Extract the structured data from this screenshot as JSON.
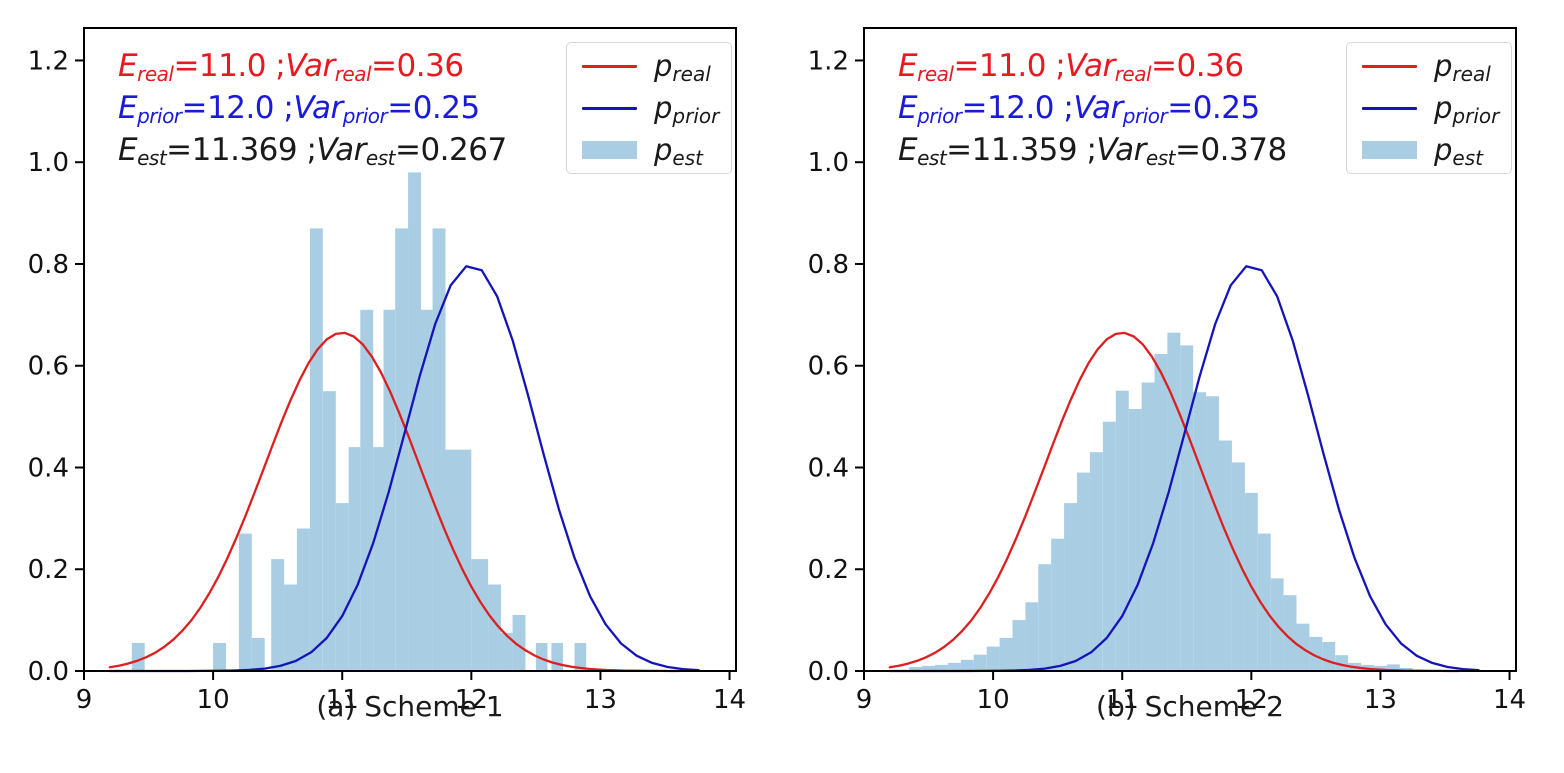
{
  "figure": {
    "background": "#ffffff",
    "spine_color": "#000000",
    "tick_label_color": "#111111"
  },
  "chart_data": [
    {
      "panel": "a",
      "type": "histogram",
      "caption": "(a) Scheme 1",
      "axes": {
        "xlim": [
          9,
          14.05
        ],
        "ylim": [
          0,
          1.2638
        ],
        "x_ticks": [
          {
            "v": 9,
            "label": "9"
          },
          {
            "v": 10,
            "label": "10"
          },
          {
            "v": 11,
            "label": "11"
          },
          {
            "v": 12,
            "label": "12"
          },
          {
            "v": 13,
            "label": "13"
          },
          {
            "v": 14,
            "label": "14"
          }
        ],
        "y_ticks": [
          {
            "v": 0.0,
            "label": "0.0"
          },
          {
            "v": 0.2,
            "label": "0.2"
          },
          {
            "v": 0.4,
            "label": "0.4"
          },
          {
            "v": 0.6,
            "label": "0.6"
          },
          {
            "v": 0.8,
            "label": "0.8"
          },
          {
            "v": 1.0,
            "label": "1.0"
          },
          {
            "v": 1.2,
            "label": "1.2"
          }
        ],
        "grid": false
      },
      "curves": [
        {
          "name": "p_{real}",
          "mean": 11.0,
          "variance": 0.36,
          "peak": 0.665,
          "color": "#dc1f1f",
          "x_start": 9.2,
          "x_end": 13.62
        },
        {
          "name": "p_{prior}",
          "mean": 12.0,
          "variance": 0.25,
          "peak": 0.798,
          "color": "#1414b8",
          "x_start": 9.2,
          "x_end": 13.8
        }
      ],
      "histogram": {
        "name": "p_{est}",
        "color": "#a9cde3",
        "mean": 11.369,
        "variance": 0.267,
        "bars": [
          [
            9.37,
            9.47,
            0.055
          ],
          [
            10.0,
            10.1,
            0.055
          ],
          [
            10.2,
            10.3,
            0.27
          ],
          [
            10.3,
            10.4,
            0.065
          ],
          [
            10.45,
            10.55,
            0.22
          ],
          [
            10.55,
            10.65,
            0.17
          ],
          [
            10.65,
            10.75,
            0.28
          ],
          [
            10.75,
            10.85,
            0.87
          ],
          [
            10.85,
            10.95,
            0.55
          ],
          [
            10.95,
            11.05,
            0.33
          ],
          [
            11.05,
            11.14,
            0.44
          ],
          [
            11.14,
            11.24,
            0.71
          ],
          [
            11.24,
            11.32,
            0.44
          ],
          [
            11.32,
            11.41,
            0.71
          ],
          [
            11.41,
            11.51,
            0.87
          ],
          [
            11.51,
            11.61,
            0.98
          ],
          [
            11.61,
            11.7,
            0.71
          ],
          [
            11.7,
            11.8,
            0.87
          ],
          [
            11.8,
            12.0,
            0.435
          ],
          [
            12.0,
            12.13,
            0.22
          ],
          [
            12.13,
            12.23,
            0.17
          ],
          [
            12.23,
            12.32,
            0.075
          ],
          [
            12.32,
            12.42,
            0.11
          ],
          [
            12.5,
            12.59,
            0.055
          ],
          [
            12.62,
            12.71,
            0.055
          ],
          [
            12.8,
            12.89,
            0.055
          ]
        ]
      },
      "annotations": [
        {
          "text": "E_{real}=11.0 ; Var_{real}=0.36",
          "color": "#e8191f"
        },
        {
          "text": "E_{prior}=12.0 ; Var_{prior}=0.25",
          "color": "#1a1ad8"
        },
        {
          "text": "E_{est}=11.369 ; Var_{est}=0.267",
          "color": "#1a1a1a"
        }
      ],
      "legend": {
        "position": "upper right",
        "items": [
          {
            "label": "p_{real}",
            "swatch": "line",
            "color": "#dc1f1f"
          },
          {
            "label": "p_{prior}",
            "swatch": "line",
            "color": "#1414b8"
          },
          {
            "label": "p_{est}",
            "swatch": "patch",
            "color": "#a9cde3"
          }
        ]
      }
    },
    {
      "panel": "b",
      "type": "histogram",
      "caption": "(b) Scheme 2",
      "axes": {
        "xlim": [
          9,
          14.05
        ],
        "ylim": [
          0,
          1.2638
        ],
        "x_ticks": [
          {
            "v": 9,
            "label": "9"
          },
          {
            "v": 10,
            "label": "10"
          },
          {
            "v": 11,
            "label": "11"
          },
          {
            "v": 12,
            "label": "12"
          },
          {
            "v": 13,
            "label": "13"
          },
          {
            "v": 14,
            "label": "14"
          }
        ],
        "y_ticks": [
          {
            "v": 0.0,
            "label": "0.0"
          },
          {
            "v": 0.2,
            "label": "0.2"
          },
          {
            "v": 0.4,
            "label": "0.4"
          },
          {
            "v": 0.6,
            "label": "0.6"
          },
          {
            "v": 0.8,
            "label": "0.8"
          },
          {
            "v": 1.0,
            "label": "1.0"
          },
          {
            "v": 1.2,
            "label": "1.2"
          }
        ],
        "grid": false
      },
      "curves": [
        {
          "name": "p_{real}",
          "mean": 11.0,
          "variance": 0.36,
          "peak": 0.665,
          "color": "#dc1f1f",
          "x_start": 9.2,
          "x_end": 13.62
        },
        {
          "name": "p_{prior}",
          "mean": 12.0,
          "variance": 0.25,
          "peak": 0.798,
          "color": "#1414b8",
          "x_start": 9.2,
          "x_end": 13.8
        }
      ],
      "histogram": {
        "name": "p_{est}",
        "color": "#a9cde3",
        "mean": 11.359,
        "variance": 0.378,
        "bars": [
          [
            9.35,
            9.45,
            0.008
          ],
          [
            9.45,
            9.55,
            0.01
          ],
          [
            9.55,
            9.65,
            0.012
          ],
          [
            9.65,
            9.75,
            0.016
          ],
          [
            9.75,
            9.85,
            0.022
          ],
          [
            9.85,
            9.95,
            0.032
          ],
          [
            9.95,
            10.05,
            0.048
          ],
          [
            10.05,
            10.15,
            0.065
          ],
          [
            10.15,
            10.25,
            0.1
          ],
          [
            10.25,
            10.35,
            0.135
          ],
          [
            10.35,
            10.45,
            0.21
          ],
          [
            10.45,
            10.55,
            0.26
          ],
          [
            10.55,
            10.65,
            0.33
          ],
          [
            10.65,
            10.75,
            0.39
          ],
          [
            10.75,
            10.85,
            0.43
          ],
          [
            10.85,
            10.95,
            0.49
          ],
          [
            10.95,
            11.05,
            0.551
          ],
          [
            11.05,
            11.15,
            0.515
          ],
          [
            11.15,
            11.25,
            0.567
          ],
          [
            11.25,
            11.35,
            0.623
          ],
          [
            11.35,
            11.45,
            0.665
          ],
          [
            11.45,
            11.55,
            0.64
          ],
          [
            11.55,
            11.65,
            0.548
          ],
          [
            11.65,
            11.75,
            0.54
          ],
          [
            11.75,
            11.85,
            0.453
          ],
          [
            11.85,
            11.95,
            0.41
          ],
          [
            11.95,
            12.05,
            0.35
          ],
          [
            12.05,
            12.15,
            0.27
          ],
          [
            12.15,
            12.25,
            0.182
          ],
          [
            12.25,
            12.35,
            0.149
          ],
          [
            12.35,
            12.45,
            0.093
          ],
          [
            12.45,
            12.55,
            0.067
          ],
          [
            12.55,
            12.65,
            0.057
          ],
          [
            12.65,
            12.75,
            0.031
          ],
          [
            12.75,
            12.85,
            0.016
          ],
          [
            12.85,
            12.95,
            0.012
          ],
          [
            12.95,
            13.05,
            0.01
          ],
          [
            13.05,
            13.15,
            0.013
          ],
          [
            13.15,
            13.25,
            0.006
          ]
        ]
      },
      "annotations": [
        {
          "text": "E_{real}=11.0 ; Var_{real}=0.36",
          "color": "#e8191f"
        },
        {
          "text": "E_{prior}=12.0 ; Var_{prior}=0.25",
          "color": "#1a1ad8"
        },
        {
          "text": "E_{est}=11.359 ; Var_{est}=0.378",
          "color": "#1a1a1a"
        }
      ],
      "legend": {
        "position": "upper right",
        "items": [
          {
            "label": "p_{real}",
            "swatch": "line",
            "color": "#dc1f1f"
          },
          {
            "label": "p_{prior}",
            "swatch": "line",
            "color": "#1414b8"
          },
          {
            "label": "p_{est}",
            "swatch": "patch",
            "color": "#a9cde3"
          }
        ]
      }
    }
  ]
}
